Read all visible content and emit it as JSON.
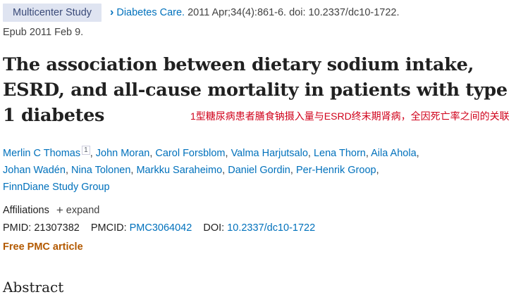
{
  "header": {
    "badge": "Multicenter Study",
    "journal": "Diabetes Care.",
    "citation": "2011 Apr;34(4):861-6. doi: 10.2337/dc10-1722.",
    "epub": "Epub 2011 Feb 9."
  },
  "article": {
    "title": "The association between dietary sodium intake, ESRD, and all-cause mortality in patients with type 1 diabetes",
    "annotation": "1型糖尿病患者膳食钠摄入量与ESRD终末期肾病，全因死亡率之间的关联"
  },
  "authors": [
    {
      "name": "Merlin C Thomas",
      "sup": "1"
    },
    {
      "name": "John Moran"
    },
    {
      "name": "Carol Forsblom"
    },
    {
      "name": "Valma Harjutsalo"
    },
    {
      "name": "Lena Thorn"
    },
    {
      "name": "Aila Ahola"
    },
    {
      "name": "Johan Wadén"
    },
    {
      "name": "Nina Tolonen"
    },
    {
      "name": "Markku Saraheimo"
    },
    {
      "name": "Daniel Gordin"
    },
    {
      "name": "Per-Henrik Groop"
    },
    {
      "name": "FinnDiane Study Group"
    }
  ],
  "affiliations": {
    "label": "Affiliations",
    "toggle": "expand"
  },
  "ids": {
    "pmid_label": "PMID:",
    "pmid": "21307382",
    "pmcid_label": "PMCID:",
    "pmcid": "PMC3064042",
    "doi_label": "DOI:",
    "doi": "10.2337/dc10-1722"
  },
  "free_label": "Free PMC article",
  "abstract_heading": "Abstract",
  "icons": {
    "chevron": "chevron-right-icon",
    "plus": "plus-icon"
  },
  "colors": {
    "link": "#0071bc",
    "badge_bg": "#dfe4f1",
    "free": "#b35900",
    "annotation": "#d0021b"
  }
}
